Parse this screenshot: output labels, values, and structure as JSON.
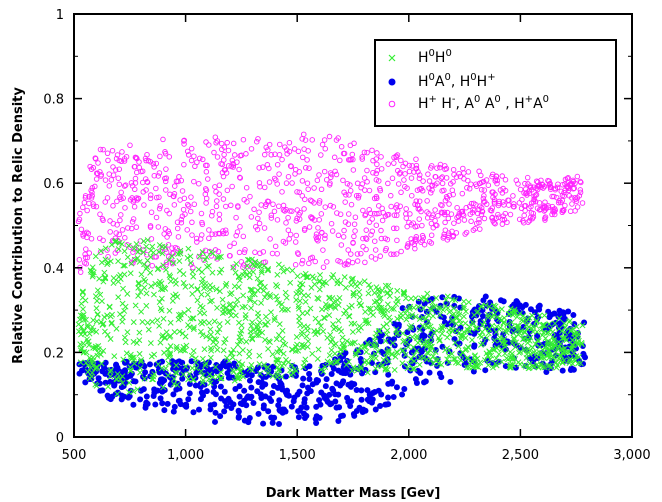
{
  "chart_data": {
    "type": "scatter",
    "xlabel": "Dark Matter Mass [Gev]",
    "ylabel": "Relative Contribution to Relic Density",
    "xlim": [
      500,
      3000
    ],
    "ylim": [
      0,
      1
    ],
    "x_ticks": [
      500,
      1000,
      1500,
      2000,
      2500,
      3000
    ],
    "x_tick_labels": [
      "500",
      "1,000",
      "1,500",
      "2,000",
      "2,500",
      "3,000"
    ],
    "y_ticks": [
      0,
      0.2,
      0.4,
      0.6,
      0.8,
      1
    ],
    "y_tick_labels": [
      "0",
      "0.2",
      "0.4",
      "0.6",
      "0.8",
      "1"
    ],
    "grid": false,
    "legend_position": "top-right",
    "series": [
      {
        "key": "h0h0",
        "label_parts": [
          [
            "H",
            ""
          ],
          [
            "0",
            "sup"
          ],
          [
            "H",
            ""
          ],
          [
            "0",
            "sup"
          ]
        ],
        "marker": "x",
        "color": "#33ee33",
        "x_range": [
          520,
          2780
        ],
        "envelope": {
          "x": [
            520,
            600,
            700,
            800,
            1000,
            1200,
            1400,
            1600,
            1800,
            2000,
            2200,
            2400,
            2600,
            2780
          ],
          "y_low": [
            0.17,
            0.12,
            0.1,
            0.11,
            0.12,
            0.13,
            0.14,
            0.15,
            0.15,
            0.16,
            0.16,
            0.16,
            0.16,
            0.17
          ],
          "y_high": [
            0.33,
            0.43,
            0.48,
            0.47,
            0.45,
            0.43,
            0.41,
            0.39,
            0.37,
            0.35,
            0.33,
            0.31,
            0.29,
            0.27
          ]
        }
      },
      {
        "key": "h0a0",
        "label_parts": [
          [
            "H",
            ""
          ],
          [
            "0",
            "sup"
          ],
          [
            "A",
            ""
          ],
          [
            "0",
            "sup"
          ],
          [
            ", H",
            ""
          ],
          [
            "0",
            "sup"
          ],
          [
            "H",
            ""
          ],
          [
            "+",
            "sup"
          ]
        ],
        "marker": "circle",
        "color": "#0000ee",
        "x_range": [
          520,
          2790
        ],
        "envelope": {
          "x": [
            520,
            600,
            700,
            800,
            1000,
            1200,
            1400,
            1600,
            1800,
            2000,
            2200,
            2400,
            2600,
            2790
          ],
          "y_low": [
            0.13,
            0.1,
            0.08,
            0.06,
            0.04,
            0.03,
            0.02,
            0.02,
            0.05,
            0.1,
            0.13,
            0.15,
            0.15,
            0.16
          ],
          "y_high": [
            0.19,
            0.18,
            0.18,
            0.18,
            0.18,
            0.18,
            0.17,
            0.17,
            0.22,
            0.32,
            0.34,
            0.33,
            0.31,
            0.29
          ]
        }
      },
      {
        "key": "hphm",
        "label_parts": [
          [
            "H",
            ""
          ],
          [
            "+",
            "sup"
          ],
          [
            " H",
            ""
          ],
          [
            "-",
            "sup"
          ],
          [
            ", A",
            ""
          ],
          [
            "0",
            "sup"
          ],
          [
            " A",
            ""
          ],
          [
            "0",
            "sup"
          ],
          [
            " , H",
            ""
          ],
          [
            "+",
            "sup"
          ],
          [
            "A",
            ""
          ],
          [
            "0",
            "sup"
          ]
        ],
        "marker": "open-circle",
        "color": "#ff22ff",
        "x_range": [
          520,
          2780
        ],
        "envelope": {
          "x": [
            520,
            600,
            700,
            800,
            1000,
            1200,
            1400,
            1600,
            1800,
            2000,
            2200,
            2400,
            2600,
            2780
          ],
          "y_low": [
            0.38,
            0.42,
            0.43,
            0.4,
            0.4,
            0.4,
            0.4,
            0.4,
            0.41,
            0.44,
            0.47,
            0.5,
            0.51,
            0.54
          ],
          "y_high": [
            0.66,
            0.68,
            0.69,
            0.7,
            0.71,
            0.71,
            0.71,
            0.72,
            0.69,
            0.66,
            0.64,
            0.62,
            0.61,
            0.62
          ]
        }
      }
    ]
  }
}
